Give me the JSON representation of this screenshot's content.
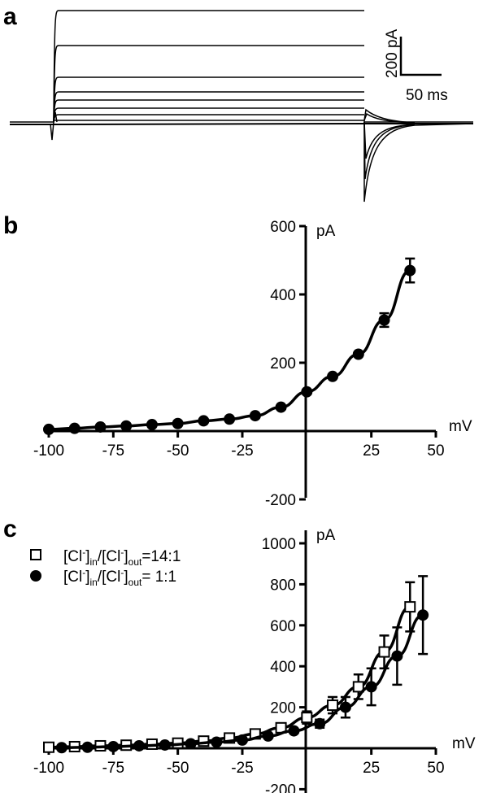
{
  "panels": {
    "a": "a",
    "b": "b",
    "c": "c"
  },
  "scale_bar": {
    "y_label": "200 pA",
    "x_label": "50 ms"
  },
  "chart_data": [
    {
      "id": "b",
      "type": "line",
      "xlabel": "mV",
      "ylabel": "pA",
      "xlim": [
        -100,
        50
      ],
      "ylim": [
        -200,
        600
      ],
      "xticks": [
        "-100",
        "-75",
        "-50",
        "-25",
        "25",
        "50"
      ],
      "yticks": [
        "600",
        "400",
        "200",
        "-200"
      ],
      "legend": "none",
      "series": [
        {
          "marker": "circle-filled",
          "x": [
            -100,
            -90,
            -80,
            -70,
            -60,
            -50,
            -40,
            -30,
            -20,
            -10,
            0,
            10,
            20,
            30,
            40
          ],
          "y": [
            5,
            8,
            12,
            15,
            19,
            22,
            30,
            35,
            45,
            70,
            115,
            160,
            225,
            325,
            470
          ],
          "err": [
            0,
            0,
            0,
            0,
            0,
            0,
            0,
            0,
            0,
            0,
            0,
            0,
            0,
            20,
            35
          ]
        }
      ]
    },
    {
      "id": "c",
      "type": "line",
      "xlabel": "mV",
      "ylabel": "pA",
      "xlim": [
        -100,
        50
      ],
      "ylim": [
        -200,
        1000
      ],
      "xticks": [
        "-100",
        "-75",
        "-50",
        "-25",
        "25",
        "50"
      ],
      "yticks": [
        "1000",
        "800",
        "600",
        "400",
        "200",
        "-200"
      ],
      "legend": "top-left",
      "series": [
        {
          "name": "[Cl-]in/[Cl-]out=14:1",
          "legend_parts": [
            "[Cl",
            "-",
            "]",
            "in",
            "/[Cl",
            "-",
            "]",
            "out",
            "=14:1"
          ],
          "marker": "square-open",
          "x": [
            -100,
            -90,
            -80,
            -70,
            -60,
            -50,
            -40,
            -30,
            -20,
            -10,
            0,
            10,
            20,
            30,
            40
          ],
          "y": [
            5,
            8,
            12,
            15,
            20,
            25,
            35,
            50,
            70,
            100,
            150,
            210,
            300,
            470,
            690
          ],
          "err": [
            0,
            0,
            0,
            0,
            0,
            0,
            0,
            0,
            10,
            20,
            30,
            40,
            60,
            80,
            120
          ]
        },
        {
          "name": "[Cl-]in/[Cl-]out= 1:1",
          "legend_parts": [
            "[Cl",
            "-",
            "]",
            "in",
            "/[Cl",
            "-",
            "]",
            "out",
            "= 1:1"
          ],
          "marker": "circle-filled",
          "x": [
            -95,
            -85,
            -75,
            -65,
            -55,
            -45,
            -35,
            -25,
            -15,
            -5,
            5,
            15,
            25,
            35,
            45
          ],
          "y": [
            3,
            5,
            8,
            12,
            16,
            22,
            30,
            40,
            60,
            85,
            120,
            200,
            300,
            450,
            650
          ],
          "err": [
            0,
            0,
            0,
            0,
            0,
            0,
            0,
            0,
            0,
            10,
            20,
            50,
            90,
            140,
            190
          ]
        }
      ]
    }
  ]
}
